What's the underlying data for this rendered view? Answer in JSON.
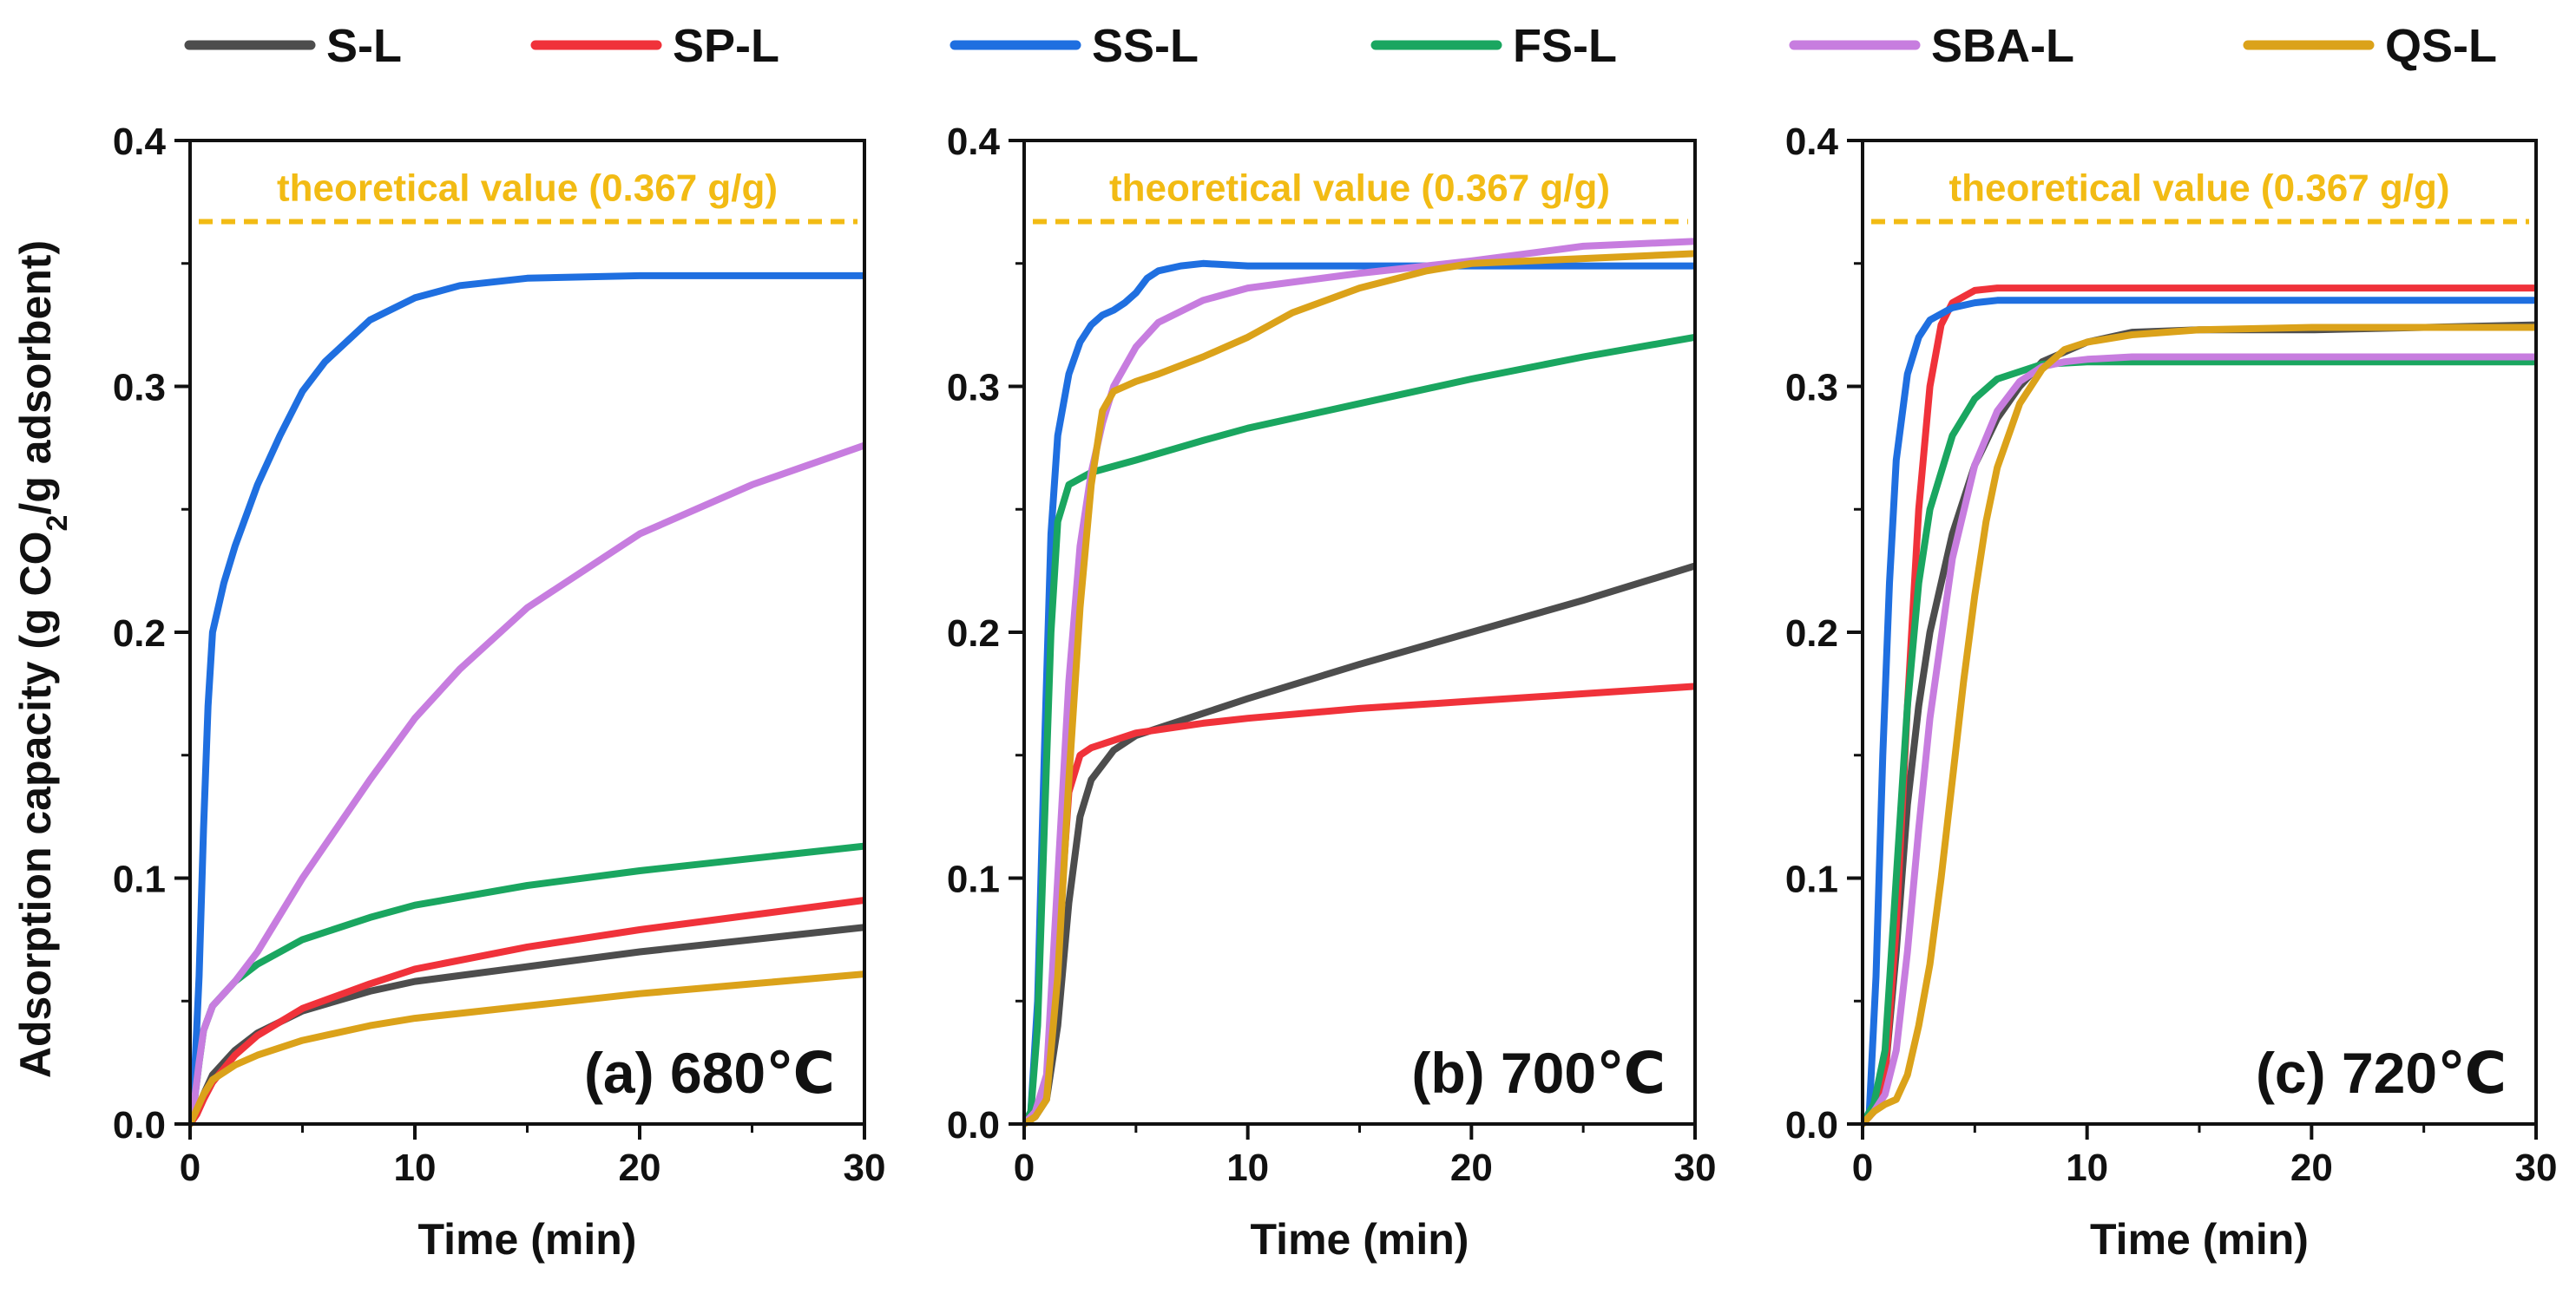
{
  "figure": {
    "ylabel_main": "Adsorption capacity (g CO",
    "ylabel_sub": "2",
    "ylabel_tail": "/g adsorbent)"
  },
  "legend": [
    {
      "name": "S-L",
      "color": "#4d4d4d"
    },
    {
      "name": "SP-L",
      "color": "#f0323a"
    },
    {
      "name": "SS-L",
      "color": "#1f6fe0"
    },
    {
      "name": "FS-L",
      "color": "#1aa660"
    },
    {
      "name": "SBA-L",
      "color": "#c77ddf"
    },
    {
      "name": "QS-L",
      "color": "#dba21a"
    }
  ],
  "reference": {
    "label": "theoretical value (0.367 g/g)",
    "value": 0.367,
    "color": "#f2bb14"
  },
  "chart_data": [
    {
      "type": "line",
      "panel_label": "(a) 680℃",
      "xlabel": "Time (min)",
      "ylabel": "Adsorption capacity (g CO2/g adsorbent)",
      "xlim": [
        0,
        30
      ],
      "ylim": [
        0,
        0.4
      ],
      "xticks": [
        "0",
        "10",
        "20",
        "30"
      ],
      "yticks": [
        "0.0",
        "0.1",
        "0.2",
        "0.3",
        "0.4"
      ],
      "series": [
        {
          "name": "S-L",
          "x": [
            0,
            0.3,
            0.6,
            1,
            2,
            3,
            5,
            8,
            10,
            15,
            20,
            25,
            30
          ],
          "y": [
            0,
            0.005,
            0.012,
            0.02,
            0.03,
            0.037,
            0.046,
            0.054,
            0.058,
            0.064,
            0.07,
            0.075,
            0.08
          ]
        },
        {
          "name": "SP-L",
          "x": [
            0,
            0.3,
            0.6,
            1,
            2,
            3,
            5,
            8,
            10,
            15,
            20,
            25,
            30
          ],
          "y": [
            0,
            0.004,
            0.01,
            0.017,
            0.028,
            0.036,
            0.047,
            0.057,
            0.063,
            0.072,
            0.079,
            0.085,
            0.091
          ]
        },
        {
          "name": "SS-L",
          "x": [
            0,
            0.2,
            0.4,
            0.6,
            0.8,
            1,
            1.5,
            2,
            3,
            4,
            5,
            6,
            8,
            10,
            12,
            15,
            20,
            25,
            30
          ],
          "y": [
            0,
            0.02,
            0.06,
            0.12,
            0.17,
            0.2,
            0.22,
            0.235,
            0.26,
            0.28,
            0.298,
            0.31,
            0.327,
            0.336,
            0.341,
            0.344,
            0.345,
            0.345,
            0.345
          ]
        },
        {
          "name": "FS-L",
          "x": [
            0,
            0.2,
            0.4,
            0.6,
            1,
            2,
            3,
            5,
            8,
            10,
            15,
            20,
            25,
            30
          ],
          "y": [
            0,
            0.01,
            0.025,
            0.038,
            0.048,
            0.058,
            0.065,
            0.075,
            0.084,
            0.089,
            0.097,
            0.103,
            0.108,
            0.113
          ]
        },
        {
          "name": "SBA-L",
          "x": [
            0,
            0.2,
            0.4,
            0.6,
            1,
            2,
            3,
            5,
            8,
            10,
            12,
            15,
            20,
            25,
            30
          ],
          "y": [
            0,
            0.01,
            0.025,
            0.038,
            0.048,
            0.058,
            0.07,
            0.1,
            0.14,
            0.165,
            0.185,
            0.21,
            0.24,
            0.26,
            0.276
          ]
        },
        {
          "name": "QS-L",
          "x": [
            0,
            0.3,
            0.6,
            1,
            2,
            3,
            5,
            8,
            10,
            15,
            20,
            25,
            30
          ],
          "y": [
            0,
            0.006,
            0.012,
            0.018,
            0.024,
            0.028,
            0.034,
            0.04,
            0.043,
            0.048,
            0.053,
            0.057,
            0.061
          ]
        }
      ]
    },
    {
      "type": "line",
      "panel_label": "(b) 700℃",
      "xlabel": "Time (min)",
      "ylabel": "Adsorption capacity (g CO2/g adsorbent)",
      "xlim": [
        0,
        30
      ],
      "ylim": [
        0,
        0.4
      ],
      "xticks": [
        "0",
        "10",
        "20",
        "30"
      ],
      "yticks": [
        "0.0",
        "0.1",
        "0.2",
        "0.3",
        "0.4"
      ],
      "series": [
        {
          "name": "S-L",
          "x": [
            0,
            0.5,
            1,
            1.5,
            2,
            2.5,
            3,
            4,
            5,
            8,
            10,
            15,
            20,
            25,
            30
          ],
          "y": [
            0,
            0.003,
            0.01,
            0.04,
            0.09,
            0.125,
            0.14,
            0.152,
            0.158,
            0.167,
            0.173,
            0.187,
            0.2,
            0.213,
            0.227
          ]
        },
        {
          "name": "SP-L",
          "x": [
            0,
            0.5,
            1,
            1.5,
            2,
            2.5,
            3,
            4,
            5,
            8,
            10,
            15,
            20,
            25,
            30
          ],
          "y": [
            0,
            0.005,
            0.015,
            0.07,
            0.135,
            0.15,
            0.153,
            0.156,
            0.159,
            0.163,
            0.165,
            0.169,
            0.172,
            0.175,
            0.178
          ]
        },
        {
          "name": "SS-L",
          "x": [
            0,
            0.3,
            0.6,
            0.9,
            1.2,
            1.5,
            2,
            2.5,
            3,
            3.5,
            4,
            4.5,
            5,
            5.5,
            6,
            7,
            8,
            10,
            15,
            20,
            25,
            30
          ],
          "y": [
            0,
            0.005,
            0.05,
            0.15,
            0.24,
            0.28,
            0.305,
            0.318,
            0.325,
            0.329,
            0.331,
            0.334,
            0.338,
            0.344,
            0.347,
            0.349,
            0.35,
            0.349,
            0.349,
            0.349,
            0.349,
            0.349
          ]
        },
        {
          "name": "FS-L",
          "x": [
            0,
            0.3,
            0.6,
            0.9,
            1.2,
            1.5,
            2,
            3,
            5,
            8,
            10,
            15,
            20,
            25,
            30
          ],
          "y": [
            0,
            0.005,
            0.04,
            0.12,
            0.2,
            0.245,
            0.26,
            0.265,
            0.27,
            0.278,
            0.283,
            0.293,
            0.303,
            0.312,
            0.32
          ]
        },
        {
          "name": "SBA-L",
          "x": [
            0,
            0.5,
            1,
            1.5,
            2,
            2.5,
            3,
            3.5,
            4,
            5,
            6,
            8,
            10,
            15,
            20,
            25,
            30
          ],
          "y": [
            0,
            0.005,
            0.02,
            0.1,
            0.18,
            0.235,
            0.265,
            0.285,
            0.3,
            0.316,
            0.326,
            0.335,
            0.34,
            0.346,
            0.351,
            0.357,
            0.359
          ]
        },
        {
          "name": "QS-L",
          "x": [
            0,
            0.5,
            1,
            1.5,
            2,
            2.5,
            3,
            3.5,
            4,
            4.5,
            5,
            6,
            8,
            10,
            12,
            15,
            18,
            20,
            25,
            30
          ],
          "y": [
            0,
            0.003,
            0.01,
            0.06,
            0.14,
            0.21,
            0.26,
            0.29,
            0.298,
            0.3,
            0.302,
            0.305,
            0.312,
            0.32,
            0.33,
            0.34,
            0.347,
            0.35,
            0.352,
            0.354
          ]
        }
      ]
    },
    {
      "type": "line",
      "panel_label": "(c) 720℃",
      "xlabel": "Time (min)",
      "ylabel": "Adsorption capacity (g CO2/g adsorbent)",
      "xlim": [
        0,
        30
      ],
      "ylim": [
        0,
        0.4
      ],
      "xticks": [
        "0",
        "10",
        "20",
        "30"
      ],
      "yticks": [
        "0.0",
        "0.1",
        "0.2",
        "0.3",
        "0.4"
      ],
      "series": [
        {
          "name": "S-L",
          "x": [
            0,
            0.5,
            1,
            1.5,
            2,
            2.5,
            3,
            4,
            5,
            6,
            7,
            8,
            10,
            12,
            15,
            20,
            25,
            30
          ],
          "y": [
            0,
            0.005,
            0.02,
            0.07,
            0.13,
            0.17,
            0.2,
            0.24,
            0.268,
            0.287,
            0.3,
            0.31,
            0.318,
            0.322,
            0.323,
            0.323,
            0.324,
            0.325
          ]
        },
        {
          "name": "SP-L",
          "x": [
            0,
            0.5,
            1,
            1.5,
            2,
            2.5,
            3,
            3.5,
            4,
            5,
            6,
            8,
            10,
            15,
            20,
            25,
            30
          ],
          "y": [
            0,
            0.005,
            0.02,
            0.08,
            0.17,
            0.25,
            0.3,
            0.325,
            0.334,
            0.339,
            0.34,
            0.34,
            0.34,
            0.34,
            0.34,
            0.34,
            0.34
          ]
        },
        {
          "name": "SS-L",
          "x": [
            0,
            0.3,
            0.6,
            0.9,
            1.2,
            1.5,
            2,
            2.5,
            3,
            4,
            5,
            6,
            8,
            10,
            15,
            20,
            25,
            30
          ],
          "y": [
            0,
            0.005,
            0.06,
            0.15,
            0.22,
            0.27,
            0.305,
            0.32,
            0.327,
            0.332,
            0.334,
            0.335,
            0.335,
            0.335,
            0.335,
            0.335,
            0.335,
            0.335
          ]
        },
        {
          "name": "FS-L",
          "x": [
            0,
            0.5,
            1,
            1.5,
            2,
            2.5,
            3,
            4,
            5,
            6,
            8,
            10,
            15,
            20,
            25,
            30
          ],
          "y": [
            0,
            0.008,
            0.03,
            0.1,
            0.17,
            0.22,
            0.25,
            0.28,
            0.295,
            0.303,
            0.309,
            0.31,
            0.31,
            0.31,
            0.31,
            0.31
          ]
        },
        {
          "name": "SBA-L",
          "x": [
            0,
            0.5,
            1,
            1.5,
            2,
            2.5,
            3,
            4,
            5,
            6,
            7,
            8,
            9,
            10,
            12,
            15,
            20,
            25,
            30
          ],
          "y": [
            0,
            0.005,
            0.012,
            0.03,
            0.07,
            0.12,
            0.165,
            0.23,
            0.268,
            0.29,
            0.302,
            0.308,
            0.31,
            0.311,
            0.312,
            0.312,
            0.312,
            0.312,
            0.312
          ]
        },
        {
          "name": "QS-L",
          "x": [
            0,
            0.5,
            1,
            1.5,
            2,
            2.5,
            3,
            3.5,
            4,
            4.5,
            5,
            5.5,
            6,
            7,
            8,
            9,
            10,
            12,
            15,
            20,
            25,
            30
          ],
          "y": [
            0,
            0.005,
            0.008,
            0.01,
            0.02,
            0.04,
            0.065,
            0.1,
            0.14,
            0.18,
            0.215,
            0.245,
            0.267,
            0.293,
            0.307,
            0.315,
            0.318,
            0.321,
            0.323,
            0.324,
            0.324,
            0.324
          ]
        }
      ]
    }
  ]
}
